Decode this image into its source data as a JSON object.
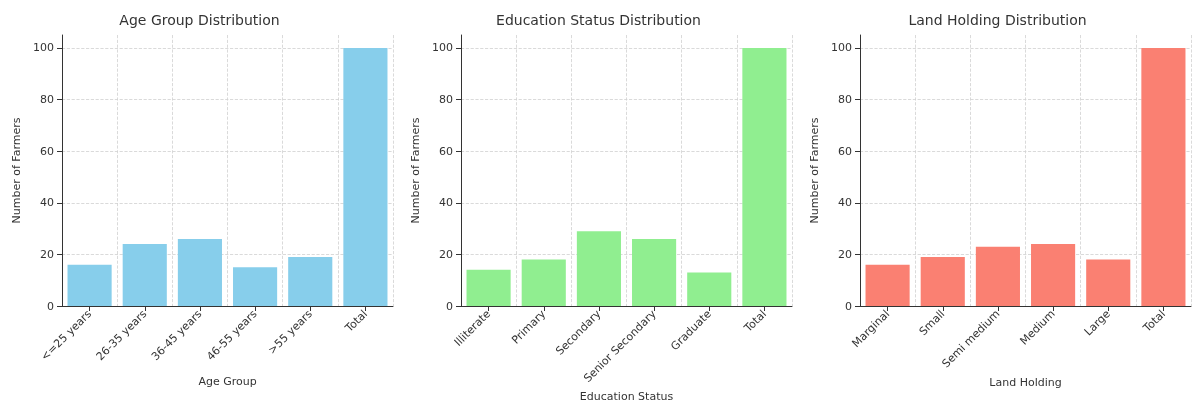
{
  "chart_data": [
    {
      "type": "bar",
      "title": "Age Group Distribution",
      "xlabel": "Age Group",
      "ylabel": "Number of Farmers",
      "categories": [
        "<=25 years",
        "26-35 years",
        "36-45 years",
        "46-55 years",
        ">55 years",
        "Total"
      ],
      "values": [
        16,
        24,
        26,
        15,
        19,
        100
      ],
      "color": "#87ceeb",
      "ylim": [
        0,
        105
      ],
      "yticks": [
        0,
        20,
        40,
        60,
        80,
        100
      ],
      "grid": true
    },
    {
      "type": "bar",
      "title": "Education Status Distribution",
      "xlabel": "Education Status",
      "ylabel": "Number of Farmers",
      "categories": [
        "Illiterate",
        "Primary",
        "Secondary",
        "Senior Secondary",
        "Graduate",
        "Total"
      ],
      "values": [
        14,
        18,
        29,
        26,
        13,
        100
      ],
      "color": "#90ee90",
      "ylim": [
        0,
        105
      ],
      "yticks": [
        0,
        20,
        40,
        60,
        80,
        100
      ],
      "grid": true
    },
    {
      "type": "bar",
      "title": "Land Holding Distribution",
      "xlabel": "Land Holding",
      "ylabel": "Number of Farmers",
      "categories": [
        "Marginal",
        "Small",
        "Semi medium",
        "Medium",
        "Large",
        "Total"
      ],
      "values": [
        16,
        19,
        23,
        24,
        18,
        100
      ],
      "color": "#fa8072",
      "ylim": [
        0,
        105
      ],
      "yticks": [
        0,
        20,
        40,
        60,
        80,
        100
      ],
      "grid": true
    }
  ]
}
